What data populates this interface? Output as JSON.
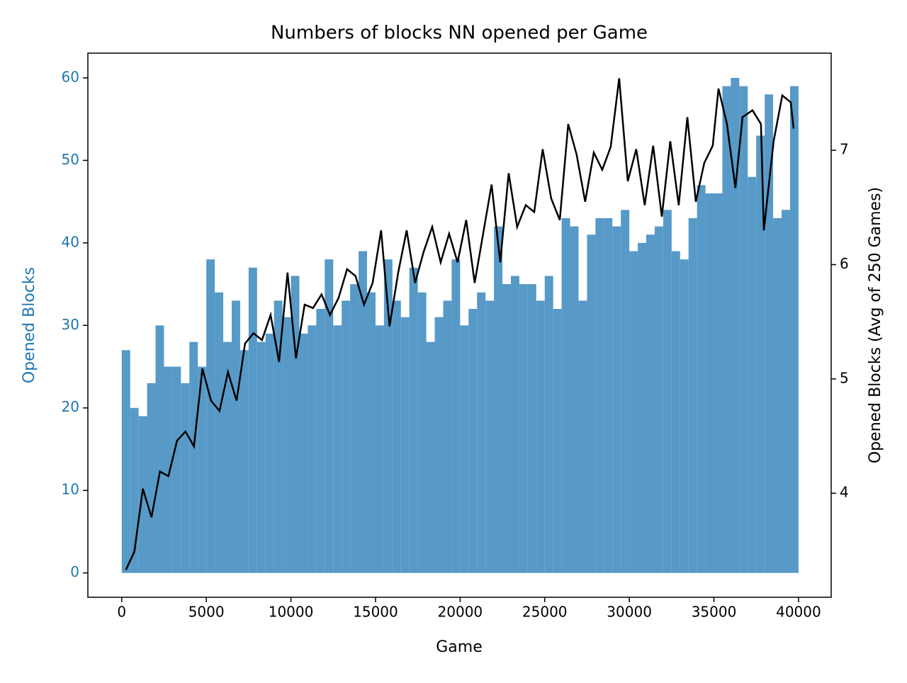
{
  "chart_data": {
    "type": "line",
    "title": "Numbers of blocks NN opened per Game",
    "xlabel": "Game",
    "ylabel": "Opened Blocks",
    "y2label": "Opened Blocks (Avg of 250 Games)",
    "xlim": [
      -2000,
      41930
    ],
    "ylim": [
      -2.95,
      63.0
    ],
    "y2lim": [
      3.09,
      7.85
    ],
    "xticks": [
      0,
      5000,
      10000,
      15000,
      20000,
      25000,
      30000,
      35000,
      40000
    ],
    "yticks": [
      0,
      10,
      20,
      30,
      40,
      50,
      60
    ],
    "y2ticks": [
      4,
      5,
      6,
      7
    ],
    "ylabel_color": "#1f77b4",
    "series": [
      {
        "type": "bar",
        "color": "#5799c7",
        "x": [
          0,
          500,
          1000,
          1500,
          2000,
          2500,
          3000,
          3500,
          4000,
          4500,
          5000,
          5500,
          6000,
          6500,
          7000,
          7500,
          8000,
          8500,
          9000,
          9500,
          10000,
          10500,
          11000,
          11500,
          12000,
          12500,
          13000,
          13500,
          14000,
          14500,
          15000,
          15500,
          16000,
          16500,
          17000,
          17500,
          18000,
          18500,
          19000,
          19500,
          20000,
          20500,
          21000,
          21500,
          22000,
          22500,
          23000,
          23500,
          24000,
          24500,
          25000,
          25500,
          26000,
          26500,
          27000,
          27500,
          28000,
          28500,
          29000,
          29500,
          30000,
          30500,
          31000,
          31500,
          32000,
          32500,
          33000,
          33500,
          34000,
          34500,
          35000,
          35500,
          36000,
          36500,
          37000,
          37500,
          38000,
          38500,
          39000,
          39500
        ],
        "values": [
          27,
          20,
          19,
          23,
          30,
          25,
          25,
          23,
          28,
          25,
          38,
          34,
          28,
          33,
          27,
          37,
          28,
          29,
          33,
          31,
          36,
          29,
          30,
          32,
          38,
          30,
          33,
          35,
          39,
          34,
          30,
          38,
          33,
          31,
          37,
          34,
          28,
          31,
          33,
          38,
          30,
          32,
          34,
          33,
          42,
          35,
          36,
          35,
          35,
          33,
          36,
          32,
          43,
          42,
          33,
          41,
          43,
          43,
          42,
          44,
          39,
          40,
          41,
          42,
          44,
          39,
          38,
          43,
          47,
          46,
          46,
          59,
          60,
          59,
          48,
          53,
          58,
          43,
          44,
          59
        ]
      },
      {
        "type": "line",
        "color": "#000000",
        "axis": "y2",
        "x": [
          250,
          750,
          1250,
          1760,
          2260,
          2760,
          3270,
          3770,
          4270,
          4770,
          5280,
          5780,
          6280,
          6790,
          7290,
          7790,
          8290,
          8800,
          9300,
          9800,
          10300,
          10810,
          11310,
          11810,
          12310,
          12820,
          13320,
          13820,
          14320,
          14830,
          15330,
          15830,
          16340,
          16840,
          17340,
          17840,
          18350,
          18850,
          19350,
          19850,
          20360,
          20860,
          21360,
          21860,
          22370,
          22870,
          23370,
          23880,
          24380,
          24880,
          25380,
          25890,
          26390,
          26890,
          27390,
          27900,
          28400,
          28900,
          29400,
          29910,
          30410,
          30910,
          31410,
          31920,
          32420,
          32920,
          33430,
          33930,
          34430,
          34930,
          35270,
          35770,
          36270,
          36690,
          37280,
          37780,
          37950,
          38530,
          39040,
          39540,
          39710
        ],
        "values": [
          3.33,
          3.49,
          4.04,
          3.79,
          4.19,
          4.15,
          4.46,
          4.54,
          4.41,
          5.09,
          4.81,
          4.72,
          5.06,
          4.81,
          5.31,
          5.4,
          5.34,
          5.56,
          5.15,
          5.93,
          5.18,
          5.65,
          5.62,
          5.74,
          5.56,
          5.71,
          5.96,
          5.9,
          5.65,
          5.84,
          6.3,
          5.46,
          5.93,
          6.3,
          5.84,
          6.11,
          6.33,
          6.02,
          6.27,
          6.02,
          6.39,
          5.84,
          6.27,
          6.7,
          6.02,
          6.8,
          6.33,
          6.52,
          6.46,
          7.01,
          6.58,
          6.39,
          7.23,
          6.96,
          6.55,
          6.98,
          6.83,
          7.03,
          7.63,
          6.73,
          7.01,
          6.52,
          7.04,
          6.42,
          7.08,
          6.52,
          7.29,
          6.55,
          6.89,
          7.04,
          7.54,
          7.23,
          6.67,
          7.29,
          7.35,
          7.23,
          6.3,
          7.08,
          7.48,
          7.42,
          7.19
        ]
      }
    ]
  }
}
